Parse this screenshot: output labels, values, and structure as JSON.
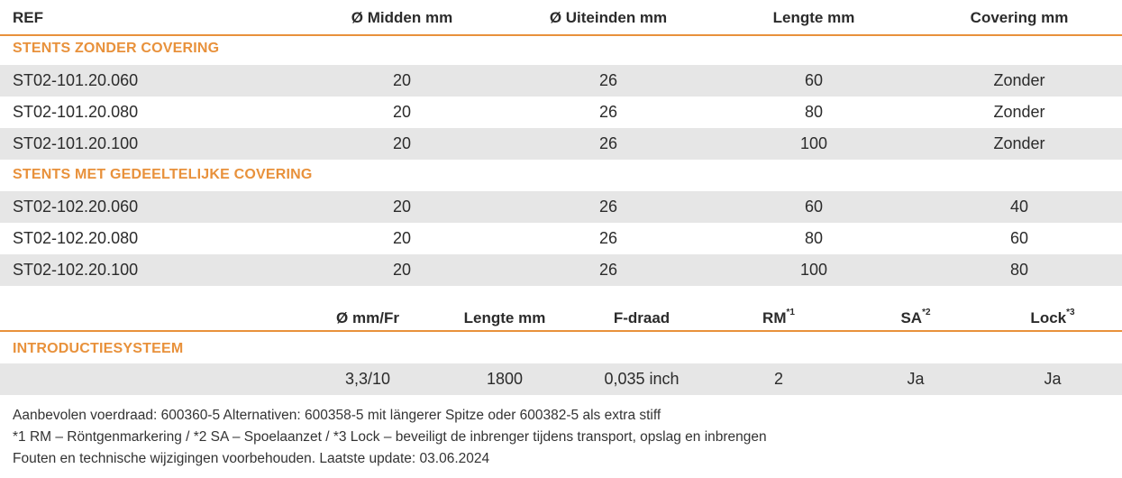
{
  "table1": {
    "headers": [
      "REF",
      "Ø Midden mm",
      "Ø Uiteinden mm",
      "Lengte mm",
      "Covering mm"
    ],
    "sections": [
      {
        "title": "STENTS ZONDER COVERING",
        "rows": [
          [
            "ST02-101.20.060",
            "20",
            "26",
            "60",
            "Zonder"
          ],
          [
            "ST02-101.20.080",
            "20",
            "26",
            "80",
            "Zonder"
          ],
          [
            "ST02-101.20.100",
            "20",
            "26",
            "100",
            "Zonder"
          ]
        ]
      },
      {
        "title": "STENTS MET GEDEELTELIJKE COVERING",
        "rows": [
          [
            "ST02-102.20.060",
            "20",
            "26",
            "60",
            "40"
          ],
          [
            "ST02-102.20.080",
            "20",
            "26",
            "80",
            "60"
          ],
          [
            "ST02-102.20.100",
            "20",
            "26",
            "100",
            "80"
          ]
        ]
      }
    ]
  },
  "table2": {
    "headers": [
      {
        "label": "Ø mm/Fr",
        "sup": ""
      },
      {
        "label": "Lengte mm",
        "sup": ""
      },
      {
        "label": "F-draad",
        "sup": ""
      },
      {
        "label": "RM",
        "sup": "*1"
      },
      {
        "label": "SA",
        "sup": "*2"
      },
      {
        "label": "Lock",
        "sup": "*3"
      }
    ],
    "section_title": "INTRODUCTIESYSTEEM",
    "row": [
      "3,3/10",
      "1800",
      "0,035 inch",
      "2",
      "Ja",
      "Ja"
    ]
  },
  "footnotes": [
    "Aanbevolen voerdraad: 600360-5 Alternativen: 600358-5 mit längerer Spitze oder 600382-5 als extra stiff",
    "*1 RM – Röntgenmarkering / *2 SA – Spoelaanzet / *3 Lock – beveiligt de inbrenger tijdens transport, opslag en inbrengen",
    "Fouten en technische wijzigingen voorbehouden. Laatste update: 03.06.2024"
  ],
  "colors": {
    "accent": "#e8913b",
    "row_shade": "#e6e6e6",
    "text": "#2b2b2b"
  }
}
